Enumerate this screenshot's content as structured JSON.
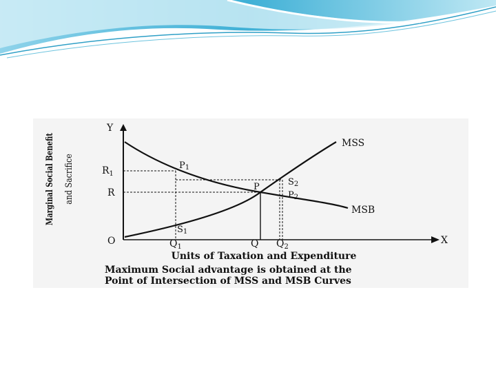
{
  "diagram": {
    "y_axis_symbol": "Y",
    "x_axis_symbol": "X",
    "origin": "O",
    "y_axis_title_line1": "Marginal Social Benefit",
    "y_axis_title_line2": "and Sacrifice",
    "x_axis_title": "Units of Taxation and Expenditure",
    "caption_line1": "Maximum Social advantage is obtained at the",
    "caption_line2": "Point of Intersection of MSS and MSB Curves",
    "curves": {
      "mss": "MSS",
      "msb": "MSB"
    },
    "y_labels": {
      "r1": "R",
      "r1_sub": "1",
      "r": "R"
    },
    "x_labels": {
      "q1": "Q",
      "q1_sub": "1",
      "q": "Q",
      "q2": "Q",
      "q2_sub": "2"
    },
    "points": {
      "p1": "P",
      "p1_sub": "1",
      "p": "P",
      "s2": "S",
      "s2_sub": "2",
      "p2": "P",
      "p2_sub": "2",
      "s1": "S",
      "s1_sub": "1"
    }
  },
  "theme": {
    "banner_colors": [
      "#bfe6f2",
      "#6cc3de",
      "#2e9fc6"
    ],
    "ink": "#111111"
  }
}
